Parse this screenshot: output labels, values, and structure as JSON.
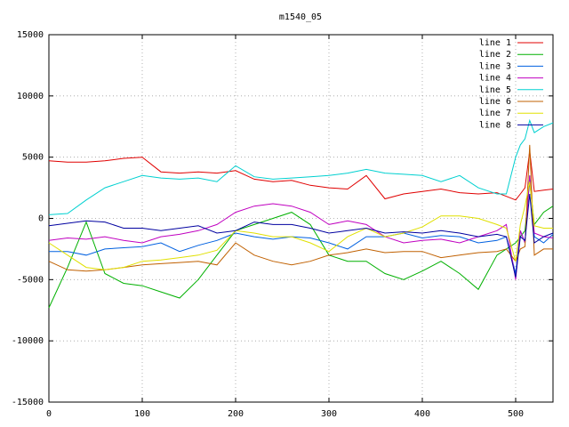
{
  "chart_data": {
    "type": "line",
    "title": "m1540_05",
    "x": [
      0,
      20,
      40,
      60,
      80,
      100,
      120,
      140,
      160,
      180,
      200,
      220,
      240,
      260,
      280,
      300,
      320,
      340,
      360,
      380,
      400,
      420,
      440,
      460,
      480,
      490,
      500,
      505,
      510,
      515,
      520,
      530,
      540
    ],
    "xlim": [
      0,
      540
    ],
    "xticks": [
      0,
      100,
      200,
      300,
      400,
      500
    ],
    "ylim": [
      -15000,
      15000
    ],
    "yticks": [
      -15000,
      -10000,
      -5000,
      0,
      5000,
      10000,
      15000
    ],
    "grid": true,
    "legend": "top-right",
    "series": [
      {
        "name": "line 1",
        "color": "#e00000",
        "values": [
          4700,
          4600,
          4600,
          4700,
          4900,
          5000,
          3800,
          3700,
          3800,
          3700,
          3900,
          3200,
          3000,
          3100,
          2700,
          2500,
          2400,
          3500,
          1600,
          2000,
          2200,
          2400,
          2100,
          2000,
          2100,
          1800,
          1500,
          2000,
          2500,
          5500,
          2200,
          2300,
          2400
        ]
      },
      {
        "name": "line 2",
        "color": "#00b000",
        "values": [
          -7300,
          -4000,
          -300,
          -4500,
          -5300,
          -5500,
          -6000,
          -6500,
          -5000,
          -3000,
          -1000,
          -500,
          0,
          500,
          -500,
          -3000,
          -3500,
          -3500,
          -4500,
          -5000,
          -4300,
          -3500,
          -4500,
          -5800,
          -3000,
          -2500,
          -2000,
          -1500,
          -1000,
          3000,
          -500,
          500,
          1000
        ]
      },
      {
        "name": "line 3",
        "color": "#0060e0",
        "values": [
          -2700,
          -2700,
          -3000,
          -2500,
          -2400,
          -2300,
          -2000,
          -2700,
          -2200,
          -1800,
          -1200,
          -1500,
          -1700,
          -1500,
          -1600,
          -2000,
          -2500,
          -1500,
          -1500,
          -1200,
          -1600,
          -1400,
          -1500,
          -2000,
          -1800,
          -1500,
          -4500,
          -1000,
          -2000,
          3500,
          -1500,
          -2000,
          -1300
        ]
      },
      {
        "name": "line 4",
        "color": "#c000c0",
        "values": [
          -1800,
          -1600,
          -1700,
          -1500,
          -1800,
          -2000,
          -1500,
          -1300,
          -1000,
          -500,
          500,
          1000,
          1200,
          1000,
          500,
          -500,
          -200,
          -500,
          -1500,
          -2000,
          -1800,
          -1700,
          -2000,
          -1500,
          -1000,
          -500,
          -5000,
          -1000,
          -2000,
          3500,
          -1200,
          -1500,
          -1600
        ]
      },
      {
        "name": "line 5",
        "color": "#00d0d0",
        "values": [
          300,
          400,
          1500,
          2500,
          3000,
          3500,
          3300,
          3200,
          3300,
          3000,
          4300,
          3400,
          3200,
          3300,
          3400,
          3500,
          3700,
          4000,
          3700,
          3600,
          3500,
          3000,
          3500,
          2500,
          2000,
          2000,
          5000,
          6000,
          6500,
          8000,
          7000,
          7500,
          7800
        ]
      },
      {
        "name": "line 6",
        "color": "#c06000",
        "values": [
          -3500,
          -4200,
          -4300,
          -4200,
          -4000,
          -3800,
          -3700,
          -3600,
          -3500,
          -3800,
          -2000,
          -3000,
          -3500,
          -3800,
          -3500,
          -3000,
          -2800,
          -2500,
          -2800,
          -2700,
          -2700,
          -3200,
          -3000,
          -2800,
          -2700,
          -2500,
          -3500,
          -2500,
          -2300,
          6000,
          -3000,
          -2500,
          -2500
        ]
      },
      {
        "name": "line 7",
        "color": "#e0e000",
        "values": [
          -2000,
          -3000,
          -4000,
          -4200,
          -4000,
          -3500,
          -3400,
          -3200,
          -3000,
          -2600,
          -1000,
          -1200,
          -1500,
          -1500,
          -2000,
          -2700,
          -1500,
          -800,
          -1500,
          -1200,
          -700,
          200,
          200,
          0,
          -500,
          -800,
          -3500,
          -500,
          1000,
          3000,
          -600,
          -800,
          -800
        ]
      },
      {
        "name": "line 8",
        "color": "#0000a0",
        "values": [
          -600,
          -400,
          -200,
          -300,
          -800,
          -800,
          -1000,
          -800,
          -600,
          -1200,
          -1000,
          -300,
          -500,
          -500,
          -800,
          -1200,
          -1000,
          -800,
          -1200,
          -1100,
          -1200,
          -1000,
          -1200,
          -1500,
          -1300,
          -1500,
          -4800,
          -1500,
          -1800,
          2000,
          -2000,
          -1500,
          -1200
        ]
      }
    ]
  }
}
